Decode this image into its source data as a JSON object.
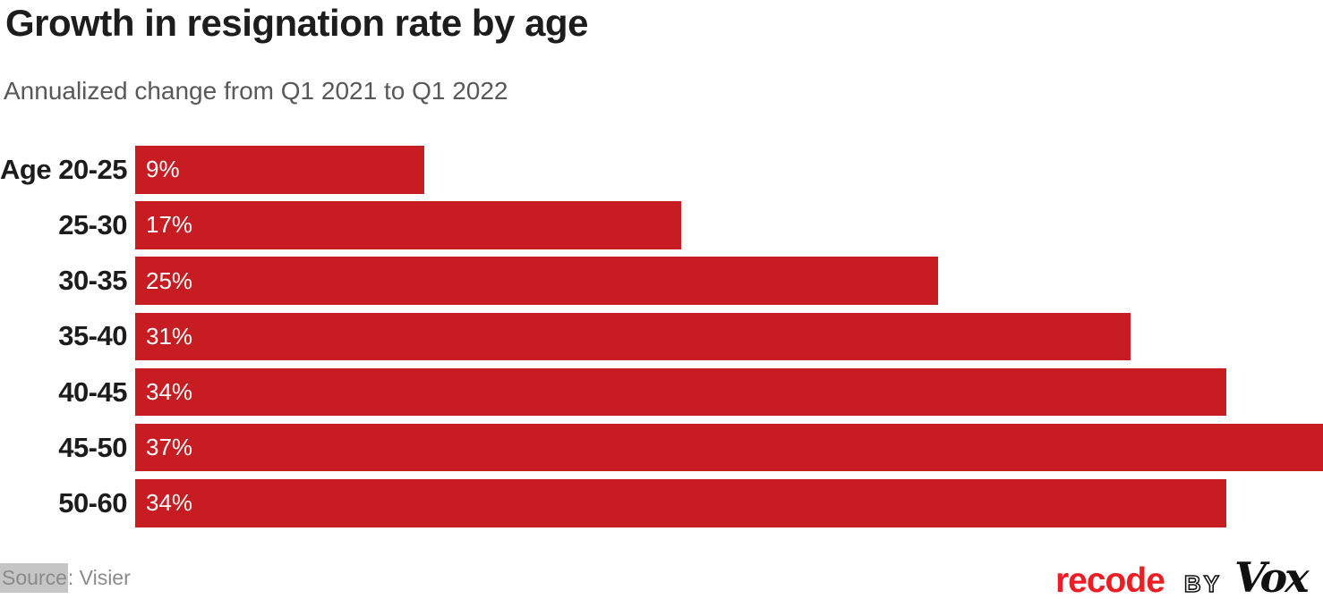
{
  "colors": {
    "bar_red": "#c71d22",
    "recode_red": "#ee1c23",
    "title": "#1d1d1d",
    "subtitle": "#585858",
    "source_gray": "#8a8a8a",
    "source_highlight": "#c5c5c5",
    "value_label_white": "#ffffff"
  },
  "source": {
    "prefix": "Source",
    "rest": ": Visier"
  },
  "branding": {
    "recode": "recode",
    "by": "BY",
    "vox": "Vox"
  },
  "chart_data": {
    "type": "bar",
    "orientation": "horizontal",
    "title": "Growth in resignation rate by age",
    "subtitle": "Annualized change from Q1 2021 to Q1 2022",
    "categories": [
      "Age 20-25",
      "25-30",
      "30-35",
      "35-40",
      "40-45",
      "45-50",
      "50-60"
    ],
    "values": [
      9,
      17,
      25,
      31,
      34,
      37,
      34
    ],
    "value_labels": [
      "9%",
      "17%",
      "25%",
      "31%",
      "34%",
      "37%",
      "34%"
    ],
    "unit": "%",
    "xlim": [
      0,
      37
    ],
    "grid": false,
    "legend": false,
    "bar_label_position": "inside-left",
    "source": "Visier"
  }
}
